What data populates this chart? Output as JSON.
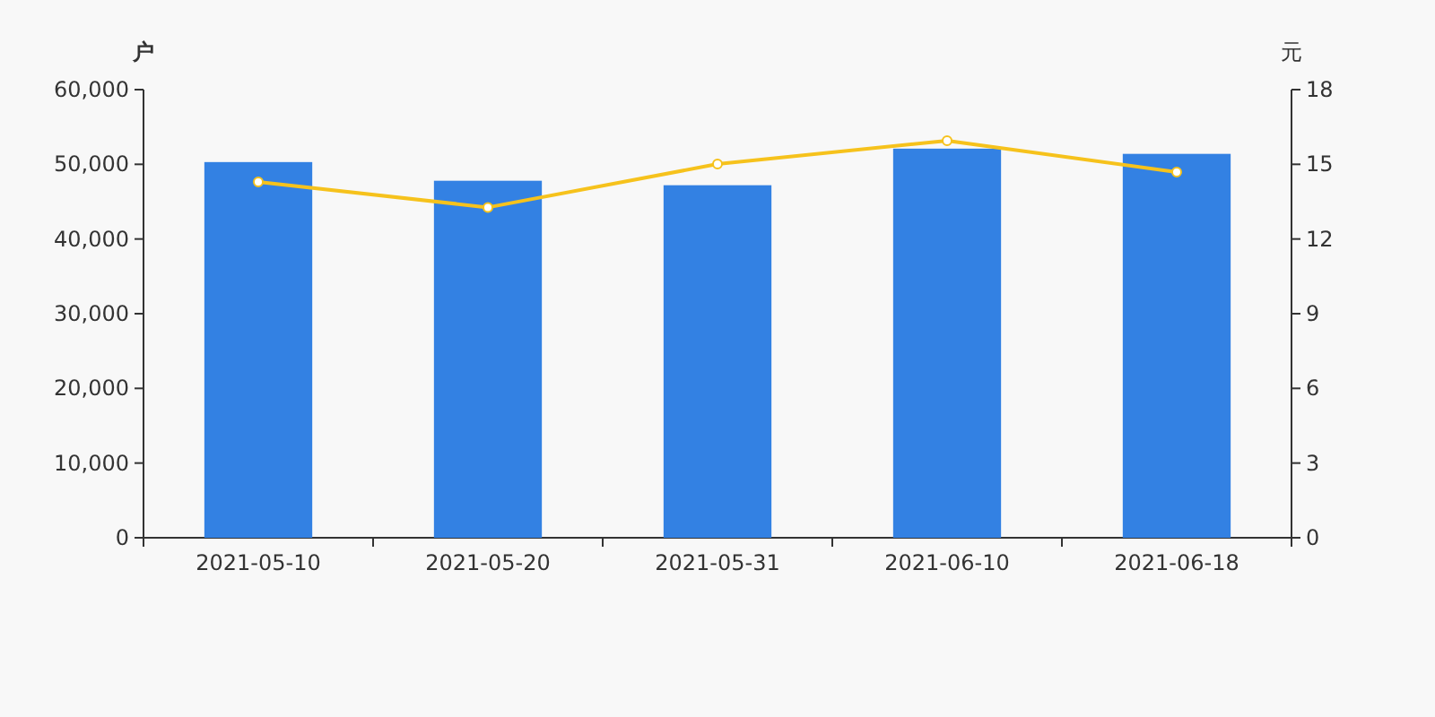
{
  "chart_data": {
    "type": "bar",
    "ylabel": "户",
    "y2label": "元",
    "categories": [
      "2021-05-10",
      "2021-05-20",
      "2021-05-31",
      "2021-06-10",
      "2021-06-18"
    ],
    "series": [
      {
        "color": "#3381e3",
        "values": [
          50300,
          47800,
          47200,
          52100,
          51400
        ]
      },
      {
        "type": "line",
        "axis": "y2",
        "color": "#f6c21c",
        "marker": "circle",
        "values": [
          14.29,
          13.27,
          15.01,
          15.95,
          14.69
        ]
      }
    ],
    "ylim": [
      0,
      60000
    ],
    "yticks": [
      0,
      {
        "value": 10000,
        "label": "10,000"
      },
      {
        "value": 20000,
        "label": "20,000"
      },
      {
        "value": 30000,
        "label": "30,000"
      },
      {
        "value": 40000,
        "label": "40,000"
      },
      {
        "value": 50000,
        "label": "50,000"
      },
      {
        "value": 60000,
        "label": "60,000"
      }
    ],
    "y2lim": [
      0,
      18
    ],
    "y2ticks": [
      0,
      3,
      6,
      9,
      12,
      15,
      18
    ]
  }
}
